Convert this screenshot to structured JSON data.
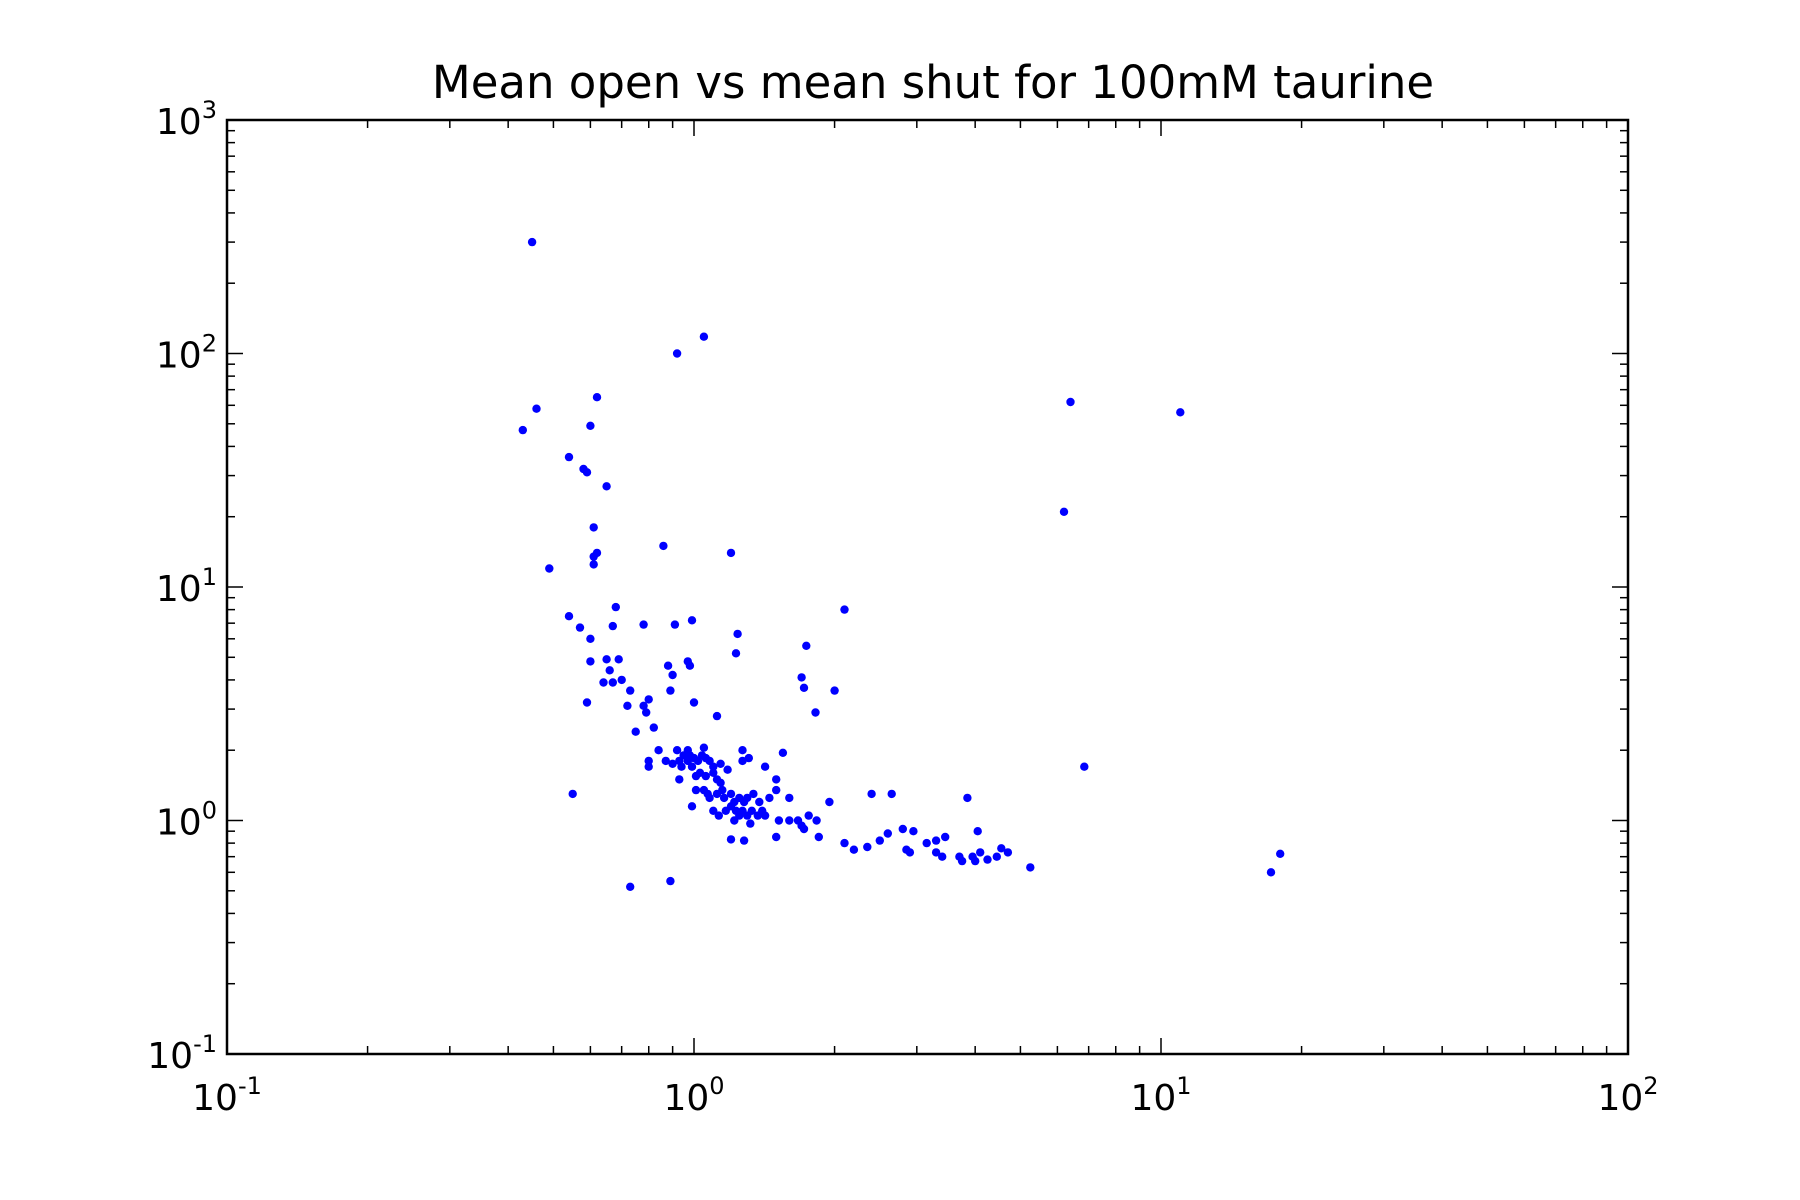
{
  "chart_data": {
    "type": "scatter",
    "title": "Mean open vs mean shut for 100mM taurine",
    "xlabel": "",
    "ylabel": "",
    "x_scale": "log",
    "y_scale": "log",
    "xlim": [
      0.1,
      100
    ],
    "ylim": [
      0.1,
      1000
    ],
    "grid": false,
    "legend": "none",
    "marker_color": "#0000ff",
    "x_ticks": [
      {
        "base": "10",
        "exp": "-1",
        "value": 0.1
      },
      {
        "base": "10",
        "exp": "0",
        "value": 1
      },
      {
        "base": "10",
        "exp": "1",
        "value": 10
      },
      {
        "base": "10",
        "exp": "2",
        "value": 100
      }
    ],
    "y_ticks": [
      {
        "base": "10",
        "exp": "-1",
        "value": 0.1
      },
      {
        "base": "10",
        "exp": "0",
        "value": 1
      },
      {
        "base": "10",
        "exp": "1",
        "value": 10
      },
      {
        "base": "10",
        "exp": "2",
        "value": 100
      },
      {
        "base": "10",
        "exp": "3",
        "value": 1000
      }
    ],
    "points": [
      [
        0.45,
        300
      ],
      [
        0.92,
        100
      ],
      [
        1.05,
        118
      ],
      [
        0.62,
        65
      ],
      [
        0.46,
        58
      ],
      [
        0.43,
        47
      ],
      [
        0.6,
        49
      ],
      [
        0.54,
        36
      ],
      [
        0.58,
        32
      ],
      [
        0.59,
        31
      ],
      [
        0.65,
        27
      ],
      [
        0.61,
        18
      ],
      [
        0.61,
        13.5
      ],
      [
        0.62,
        14
      ],
      [
        0.61,
        12.5
      ],
      [
        0.49,
        12
      ],
      [
        0.86,
        15
      ],
      [
        1.2,
        14
      ],
      [
        6.4,
        62
      ],
      [
        11.0,
        56
      ],
      [
        6.2,
        21
      ],
      [
        0.54,
        7.5
      ],
      [
        0.57,
        6.7
      ],
      [
        0.6,
        6.0
      ],
      [
        0.67,
        6.8
      ],
      [
        0.68,
        8.2
      ],
      [
        0.78,
        6.9
      ],
      [
        0.91,
        6.9
      ],
      [
        0.99,
        7.2
      ],
      [
        2.1,
        8.0
      ],
      [
        1.24,
        6.3
      ],
      [
        1.23,
        5.2
      ],
      [
        1.74,
        5.6
      ],
      [
        0.6,
        4.8
      ],
      [
        0.65,
        4.9
      ],
      [
        0.69,
        4.9
      ],
      [
        0.66,
        4.4
      ],
      [
        0.64,
        3.9
      ],
      [
        0.67,
        3.9
      ],
      [
        0.7,
        4.0
      ],
      [
        0.88,
        4.6
      ],
      [
        0.9,
        4.2
      ],
      [
        0.97,
        4.8
      ],
      [
        0.98,
        4.6
      ],
      [
        0.89,
        3.6
      ],
      [
        0.73,
        3.6
      ],
      [
        0.72,
        3.1
      ],
      [
        0.78,
        3.1
      ],
      [
        0.8,
        3.3
      ],
      [
        0.79,
        2.9
      ],
      [
        0.59,
        3.2
      ],
      [
        1.0,
        3.2
      ],
      [
        1.12,
        2.8
      ],
      [
        1.7,
        4.1
      ],
      [
        1.72,
        3.7
      ],
      [
        2.0,
        3.6
      ],
      [
        1.82,
        2.9
      ],
      [
        0.75,
        2.4
      ],
      [
        0.82,
        2.5
      ],
      [
        0.84,
        2.0
      ],
      [
        0.8,
        1.8
      ],
      [
        0.8,
        1.7
      ],
      [
        0.87,
        1.8
      ],
      [
        0.9,
        1.75
      ],
      [
        0.93,
        1.8
      ],
      [
        0.92,
        2.0
      ],
      [
        0.95,
        1.9
      ],
      [
        0.97,
        2.0
      ],
      [
        0.98,
        1.9
      ],
      [
        1.0,
        1.85
      ],
      [
        0.94,
        1.7
      ],
      [
        0.97,
        1.8
      ],
      [
        0.99,
        1.7
      ],
      [
        1.02,
        1.8
      ],
      [
        1.04,
        1.9
      ],
      [
        1.05,
        2.05
      ],
      [
        1.06,
        1.85
      ],
      [
        1.08,
        1.8
      ],
      [
        1.1,
        1.7
      ],
      [
        1.14,
        1.75
      ],
      [
        1.18,
        1.65
      ],
      [
        1.27,
        2.0
      ],
      [
        1.27,
        1.8
      ],
      [
        1.31,
        1.85
      ],
      [
        1.42,
        1.7
      ],
      [
        1.5,
        1.5
      ],
      [
        1.5,
        1.35
      ],
      [
        1.55,
        1.95
      ],
      [
        1.01,
        1.55
      ],
      [
        1.03,
        1.6
      ],
      [
        1.06,
        1.55
      ],
      [
        1.1,
        1.6
      ],
      [
        1.12,
        1.5
      ],
      [
        1.14,
        1.45
      ],
      [
        1.15,
        1.35
      ],
      [
        0.93,
        1.5
      ],
      [
        1.01,
        1.35
      ],
      [
        1.05,
        1.35
      ],
      [
        1.07,
        1.3
      ],
      [
        1.08,
        1.25
      ],
      [
        1.12,
        1.3
      ],
      [
        1.16,
        1.25
      ],
      [
        1.2,
        1.3
      ],
      [
        1.25,
        1.25
      ],
      [
        1.22,
        1.2
      ],
      [
        1.28,
        1.2
      ],
      [
        1.3,
        1.25
      ],
      [
        1.34,
        1.3
      ],
      [
        1.38,
        1.2
      ],
      [
        1.45,
        1.25
      ],
      [
        1.6,
        1.25
      ],
      [
        0.99,
        1.15
      ],
      [
        1.1,
        1.1
      ],
      [
        1.13,
        1.05
      ],
      [
        1.17,
        1.1
      ],
      [
        1.2,
        1.15
      ],
      [
        1.23,
        1.1
      ],
      [
        1.25,
        1.05
      ],
      [
        1.27,
        1.1
      ],
      [
        1.3,
        1.05
      ],
      [
        1.33,
        1.1
      ],
      [
        1.37,
        1.05
      ],
      [
        1.4,
        1.1
      ],
      [
        1.42,
        1.05
      ],
      [
        1.32,
        0.97
      ],
      [
        1.22,
        1.0
      ],
      [
        1.2,
        0.83
      ],
      [
        1.28,
        0.82
      ],
      [
        1.5,
        0.85
      ],
      [
        1.52,
        1.0
      ],
      [
        1.6,
        1.0
      ],
      [
        1.67,
        1.0
      ],
      [
        1.7,
        0.95
      ],
      [
        1.72,
        0.92
      ],
      [
        1.76,
        1.05
      ],
      [
        1.83,
        1.0
      ],
      [
        1.85,
        0.85
      ],
      [
        1.95,
        1.2
      ],
      [
        2.1,
        0.8
      ],
      [
        2.2,
        0.75
      ],
      [
        2.35,
        0.77
      ],
      [
        2.5,
        0.82
      ],
      [
        2.6,
        0.88
      ],
      [
        2.4,
        1.3
      ],
      [
        2.65,
        1.3
      ],
      [
        2.8,
        0.92
      ],
      [
        2.95,
        0.9
      ],
      [
        2.85,
        0.75
      ],
      [
        2.9,
        0.73
      ],
      [
        3.15,
        0.8
      ],
      [
        3.3,
        0.82
      ],
      [
        3.3,
        0.73
      ],
      [
        3.4,
        0.7
      ],
      [
        3.45,
        0.85
      ],
      [
        3.7,
        0.7
      ],
      [
        3.75,
        0.67
      ],
      [
        3.95,
        0.7
      ],
      [
        4.0,
        0.67
      ],
      [
        4.1,
        0.73
      ],
      [
        4.25,
        0.68
      ],
      [
        4.45,
        0.7
      ],
      [
        4.55,
        0.76
      ],
      [
        4.7,
        0.73
      ],
      [
        3.85,
        1.25
      ],
      [
        4.05,
        0.9
      ],
      [
        5.25,
        0.63
      ],
      [
        6.85,
        1.7
      ],
      [
        17.2,
        0.6
      ],
      [
        18.0,
        0.72
      ],
      [
        0.55,
        1.3
      ],
      [
        0.73,
        0.52
      ],
      [
        0.89,
        0.55
      ]
    ]
  }
}
